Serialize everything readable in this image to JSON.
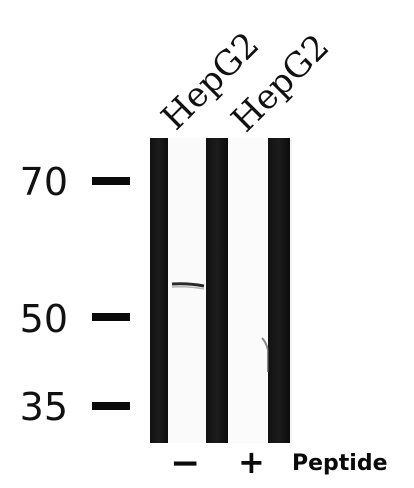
{
  "lanes": [
    {
      "label": "HepG2"
    },
    {
      "label": "HepG2"
    }
  ],
  "markers": [
    {
      "value": "70"
    },
    {
      "value": "50"
    },
    {
      "value": "35"
    }
  ],
  "treatment": {
    "minus": "−",
    "plus": "+",
    "label": "Peptide"
  }
}
